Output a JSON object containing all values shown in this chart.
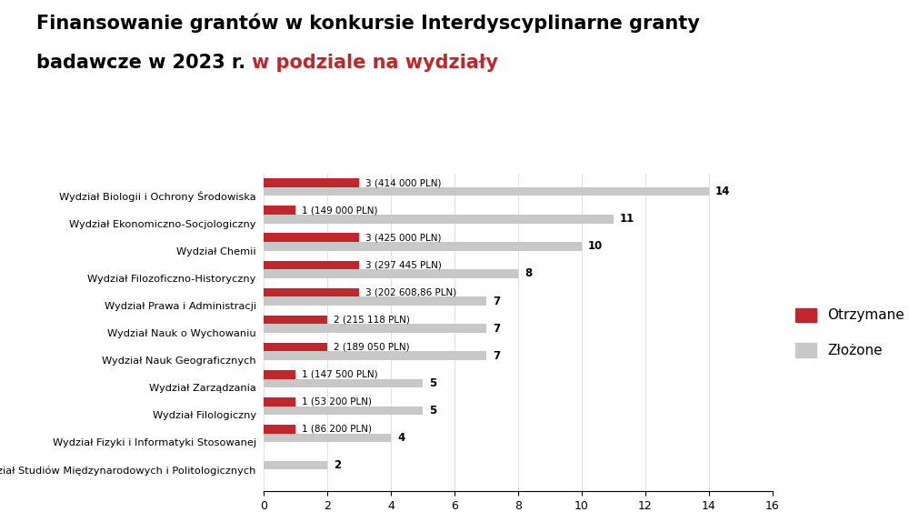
{
  "title_line1": "Finansowanie grantów w konkursie Interdyscyplinarne granty",
  "title_line2_black": "badawcze w 2023 r. ",
  "title_line2_red": "w podziale na wydziały",
  "categories": [
    "Wydział Biologii i Ochrony Środowiska",
    "Wydział Ekonomiczno-Socjologiczny",
    "Wydział Chemii",
    "Wydział Filozoficzno-Historyczny",
    "Wydział Prawa i Administracji",
    "Wydział Nauk o Wychowaniu",
    "Wydział Nauk Geograficznych",
    "Wydział Zarządzania",
    "Wydział Filologiczny",
    "Wydział Fizyki i Informatyki Stosowanej",
    "Wydział Studiów Międzynarodowych i Politologicznych"
  ],
  "received_values": [
    3,
    1,
    3,
    3,
    3,
    2,
    2,
    1,
    1,
    1,
    0
  ],
  "submitted_values": [
    14,
    11,
    10,
    8,
    7,
    7,
    7,
    5,
    5,
    4,
    2
  ],
  "received_labels": [
    "3 (414 000 PLN)",
    "1 (149 000 PLN)",
    "3 (425 000 PLN)",
    "3 (297 445 PLN)",
    "3 (202 608,86 PLN)",
    "2 (215 118 PLN)",
    "2 (189 050 PLN)",
    "1 (147 500 PLN)",
    "1 (53 200 PLN)",
    "1 (86 200 PLN)",
    ""
  ],
  "color_received": "#c0272d",
  "color_submitted": "#c8c8c8",
  "background_color": "#ffffff",
  "xlim": [
    0,
    16
  ],
  "xticks": [
    0,
    2,
    4,
    6,
    8,
    10,
    12,
    14,
    16
  ],
  "bar_height": 0.32,
  "legend_received": "Otrzymane",
  "legend_submitted": "Złożone"
}
